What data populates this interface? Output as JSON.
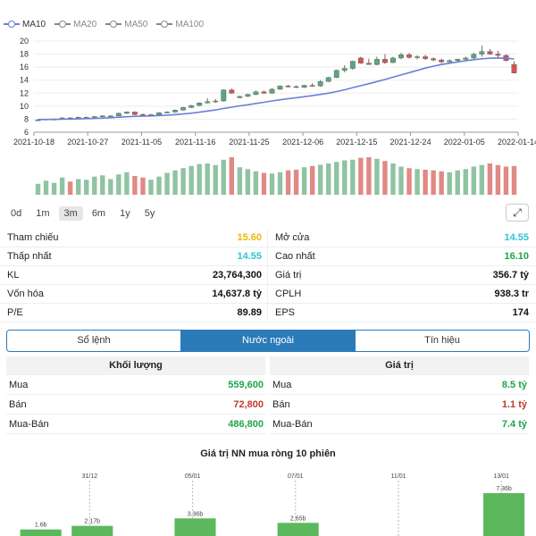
{
  "legend": [
    {
      "label": "MA10",
      "active": true
    },
    {
      "label": "MA20",
      "active": false
    },
    {
      "label": "MA50",
      "active": false
    },
    {
      "label": "MA100",
      "active": false
    }
  ],
  "chart_data": {
    "type": "candlestick",
    "y_ticks": [
      "6",
      "8",
      "10",
      "12",
      "14",
      "16",
      "18",
      "20"
    ],
    "ylim": [
      6,
      20
    ],
    "x_labels": [
      "2021-10-18",
      "2021-10-27",
      "2021-11-05",
      "2021-11-16",
      "2021-11-25",
      "2021-12-06",
      "2021-12-15",
      "2021-12-24",
      "2022-01-05",
      "2022-01-14"
    ],
    "ma10_color": "#6b7fd7",
    "up_color": "#5aa77b",
    "down_color": "#d9534f",
    "volume_up_color": "#8fc3a2",
    "volume_down_color": "#e08a85",
    "candles": [
      [
        7.9,
        8.0,
        7.8,
        7.9
      ],
      [
        7.9,
        8.0,
        7.9,
        8.0
      ],
      [
        8.0,
        8.1,
        7.9,
        8.0
      ],
      [
        8.0,
        8.3,
        8.0,
        8.2
      ],
      [
        8.2,
        8.3,
        8.0,
        8.1
      ],
      [
        8.1,
        8.4,
        8.1,
        8.3
      ],
      [
        8.3,
        8.4,
        8.2,
        8.3
      ],
      [
        8.3,
        8.5,
        8.2,
        8.4
      ],
      [
        8.4,
        8.6,
        8.3,
        8.5
      ],
      [
        8.5,
        8.6,
        8.4,
        8.5
      ],
      [
        8.5,
        9.0,
        8.5,
        8.9
      ],
      [
        8.9,
        9.2,
        8.8,
        9.1
      ],
      [
        9.1,
        9.2,
        8.6,
        8.7
      ],
      [
        8.7,
        8.9,
        8.5,
        8.6
      ],
      [
        8.6,
        8.8,
        8.5,
        8.7
      ],
      [
        8.7,
        9.1,
        8.6,
        9.0
      ],
      [
        9.0,
        9.2,
        8.9,
        9.1
      ],
      [
        9.1,
        9.5,
        9.0,
        9.4
      ],
      [
        9.4,
        9.9,
        9.3,
        9.8
      ],
      [
        9.8,
        10.2,
        9.7,
        10.1
      ],
      [
        10.1,
        10.6,
        10.0,
        10.5
      ],
      [
        10.5,
        11.2,
        10.4,
        10.7
      ],
      [
        10.7,
        11.1,
        10.5,
        10.8
      ],
      [
        10.8,
        12.6,
        10.7,
        12.5
      ],
      [
        12.5,
        12.7,
        11.9,
        12.0
      ],
      [
        11.3,
        11.6,
        11.2,
        11.5
      ],
      [
        11.5,
        11.9,
        11.4,
        11.8
      ],
      [
        11.8,
        12.4,
        11.7,
        12.2
      ],
      [
        12.2,
        12.4,
        11.9,
        12.0
      ],
      [
        12.0,
        12.8,
        11.9,
        12.6
      ],
      [
        12.6,
        13.2,
        12.5,
        13.1
      ],
      [
        13.1,
        13.3,
        12.9,
        13.0
      ],
      [
        13.0,
        13.2,
        12.8,
        12.9
      ],
      [
        12.9,
        13.3,
        12.8,
        13.2
      ],
      [
        13.2,
        13.5,
        13.0,
        13.1
      ],
      [
        13.1,
        14.0,
        13.0,
        13.8
      ],
      [
        13.8,
        14.5,
        13.7,
        14.4
      ],
      [
        14.4,
        15.6,
        14.3,
        15.5
      ],
      [
        15.5,
        16.3,
        15.2,
        15.8
      ],
      [
        15.8,
        17.0,
        15.6,
        16.9
      ],
      [
        17.4,
        17.6,
        16.5,
        16.6
      ],
      [
        16.6,
        17.3,
        16.4,
        16.4
      ],
      [
        16.4,
        17.6,
        16.3,
        17.2
      ],
      [
        17.2,
        18.0,
        16.5,
        16.7
      ],
      [
        16.7,
        17.6,
        16.6,
        17.4
      ],
      [
        17.4,
        18.2,
        17.2,
        17.9
      ],
      [
        17.9,
        18.2,
        17.3,
        17.5
      ],
      [
        17.5,
        17.8,
        17.2,
        17.6
      ],
      [
        17.6,
        17.9,
        17.1,
        17.3
      ],
      [
        17.3,
        17.5,
        16.9,
        17.1
      ],
      [
        17.1,
        17.3,
        16.6,
        16.8
      ],
      [
        16.8,
        17.2,
        16.6,
        17.0
      ],
      [
        17.0,
        17.3,
        16.8,
        17.2
      ],
      [
        17.2,
        17.6,
        17.0,
        17.4
      ],
      [
        17.4,
        18.2,
        17.2,
        18.0
      ],
      [
        18.0,
        19.3,
        17.6,
        18.4
      ],
      [
        18.4,
        18.8,
        17.9,
        18.0
      ],
      [
        18.0,
        18.5,
        17.4,
        17.8
      ],
      [
        17.8,
        18.0,
        16.9,
        17.0
      ],
      [
        16.4,
        16.9,
        15.0,
        15.1
      ]
    ],
    "ma10": [
      7.95,
      7.96,
      7.97,
      8.0,
      8.02,
      8.05,
      8.08,
      8.12,
      8.17,
      8.22,
      8.3,
      8.38,
      8.43,
      8.47,
      8.5,
      8.56,
      8.62,
      8.7,
      8.8,
      8.93,
      9.08,
      9.25,
      9.42,
      9.65,
      9.85,
      10.05,
      10.22,
      10.42,
      10.6,
      10.8,
      10.98,
      11.15,
      11.3,
      11.46,
      11.62,
      11.8,
      12.0,
      12.25,
      12.52,
      12.85,
      13.15,
      13.45,
      13.78,
      14.1,
      14.45,
      14.8,
      15.15,
      15.5,
      15.85,
      16.15,
      16.4,
      16.6,
      16.8,
      17.0,
      17.15,
      17.28,
      17.36,
      17.4,
      17.38,
      17.25
    ],
    "volume": [
      0.35,
      0.45,
      0.38,
      0.55,
      0.42,
      0.5,
      0.48,
      0.58,
      0.62,
      0.5,
      0.65,
      0.72,
      0.6,
      0.55,
      0.48,
      0.58,
      0.7,
      0.78,
      0.85,
      0.92,
      0.98,
      1.0,
      0.95,
      1.12,
      1.2,
      0.88,
      0.82,
      0.75,
      0.7,
      0.68,
      0.72,
      0.78,
      0.8,
      0.88,
      0.92,
      0.96,
      1.0,
      1.05,
      1.1,
      1.12,
      1.18,
      1.2,
      1.15,
      1.08,
      1.0,
      0.9,
      0.85,
      0.82,
      0.8,
      0.78,
      0.75,
      0.72,
      0.78,
      0.82,
      0.9,
      0.95,
      1.0,
      0.95,
      0.9,
      0.92
    ]
  },
  "periods": {
    "items": [
      "0d",
      "1m",
      "3m",
      "6m",
      "1y",
      "5y"
    ],
    "active": "3m"
  },
  "expand_icon": "⤢",
  "stats": {
    "rows": [
      [
        {
          "label": "Tham chiếu",
          "value": "15.60",
          "color": "yellow"
        },
        {
          "label": "Mở cửa",
          "value": "14.55",
          "color": "cyan"
        }
      ],
      [
        {
          "label": "Thấp nhất",
          "value": "14.55",
          "color": "cyan"
        },
        {
          "label": "Cao nhất",
          "value": "16.10",
          "color": "green"
        }
      ],
      [
        {
          "label": "KL",
          "value": "23,764,300",
          "color": ""
        },
        {
          "label": "Giá trị",
          "value": "356.7 tỷ",
          "color": ""
        }
      ],
      [
        {
          "label": "Vốn hóa",
          "value": "14,637.8 tỷ",
          "color": ""
        },
        {
          "label": "CPLH",
          "value": "938.3 tr",
          "color": ""
        }
      ],
      [
        {
          "label": "P/E",
          "value": "89.89",
          "color": ""
        },
        {
          "label": "EPS",
          "value": "174",
          "color": ""
        }
      ]
    ]
  },
  "segments": {
    "items": [
      "Sổ lệnh",
      "Nước ngoài",
      "Tín hiệu"
    ],
    "active": 1
  },
  "foreign": {
    "volume": {
      "header": "Khối lượng",
      "rows": [
        {
          "label": "Mua",
          "value": "559,600",
          "color": "green"
        },
        {
          "label": "Bán",
          "value": "72,800",
          "color": "red"
        },
        {
          "label": "Mua-Bán",
          "value": "486,800",
          "color": "green"
        }
      ]
    },
    "value": {
      "header": "Giá trị",
      "rows": [
        {
          "label": "Mua",
          "value": "8.5 tỷ",
          "color": "green"
        },
        {
          "label": "Bán",
          "value": "1.1 tỷ",
          "color": "red"
        },
        {
          "label": "Mua-Bán",
          "value": "7.4 tỷ",
          "color": "green"
        }
      ]
    }
  },
  "net_title": "Giá trị NN mua ròng 10 phiên",
  "net_chart": {
    "date_labels": [
      "31/12",
      "05/01",
      "07/01",
      "11/01",
      "13/01"
    ],
    "bars": [
      {
        "label": "1.6b",
        "value": 1.6
      },
      {
        "label": "2.17b",
        "value": 2.17
      },
      {
        "label": "",
        "value": 0
      },
      {
        "label": "3.36b",
        "value": 3.36
      },
      {
        "label": "",
        "value": 0
      },
      {
        "label": "2.65b",
        "value": 2.65
      },
      {
        "label": "",
        "value": 0
      },
      {
        "label": "",
        "value": 0
      },
      {
        "label": "",
        "value": 0
      },
      {
        "label": "7.36b",
        "value": 7.36
      }
    ],
    "bar_color": "#5cb85c"
  }
}
